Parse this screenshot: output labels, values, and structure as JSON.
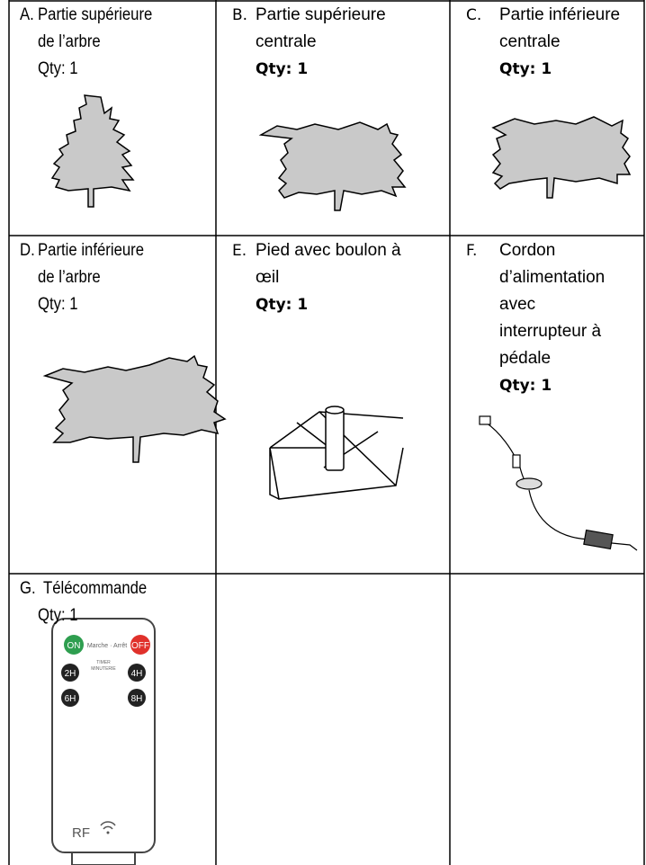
{
  "cells": [
    {
      "letter": "A.",
      "lines": [
        "Partie supérieure",
        "de l’arbre"
      ],
      "qty": "Qty: 1"
    },
    {
      "letter": "B.",
      "lines": [
        "Partie supérieure",
        "centrale"
      ],
      "qty": "Qty: 1"
    },
    {
      "letter": "C.",
      "lines": [
        "Partie inférieure",
        "centrale"
      ],
      "qty": "Qty: 1"
    },
    {
      "letter": "D.",
      "lines": [
        "Partie inférieure",
        "de l’arbre"
      ],
      "qty": "Qty: 1"
    },
    {
      "letter": "E.",
      "lines": [
        "Pied avec boulon à",
        "œil"
      ],
      "qty": "Qty: 1"
    },
    {
      "letter": "F.",
      "lines": [
        "Cordon",
        "d’alimentation",
        "avec",
        "interrupteur à",
        "pédale"
      ],
      "qty": "Qty: 1"
    },
    {
      "letter": "G.",
      "lines": [
        "Télécommande"
      ],
      "qty": "Qty: 1"
    }
  ],
  "remote": {
    "on": "ON",
    "onoff": "Marche · Arrêt",
    "off": "OFF",
    "timer": [
      "TIMER",
      "MINUTERIE"
    ],
    "buttons": [
      "2H",
      "4H",
      "6H",
      "8H"
    ],
    "rf": "RF"
  }
}
